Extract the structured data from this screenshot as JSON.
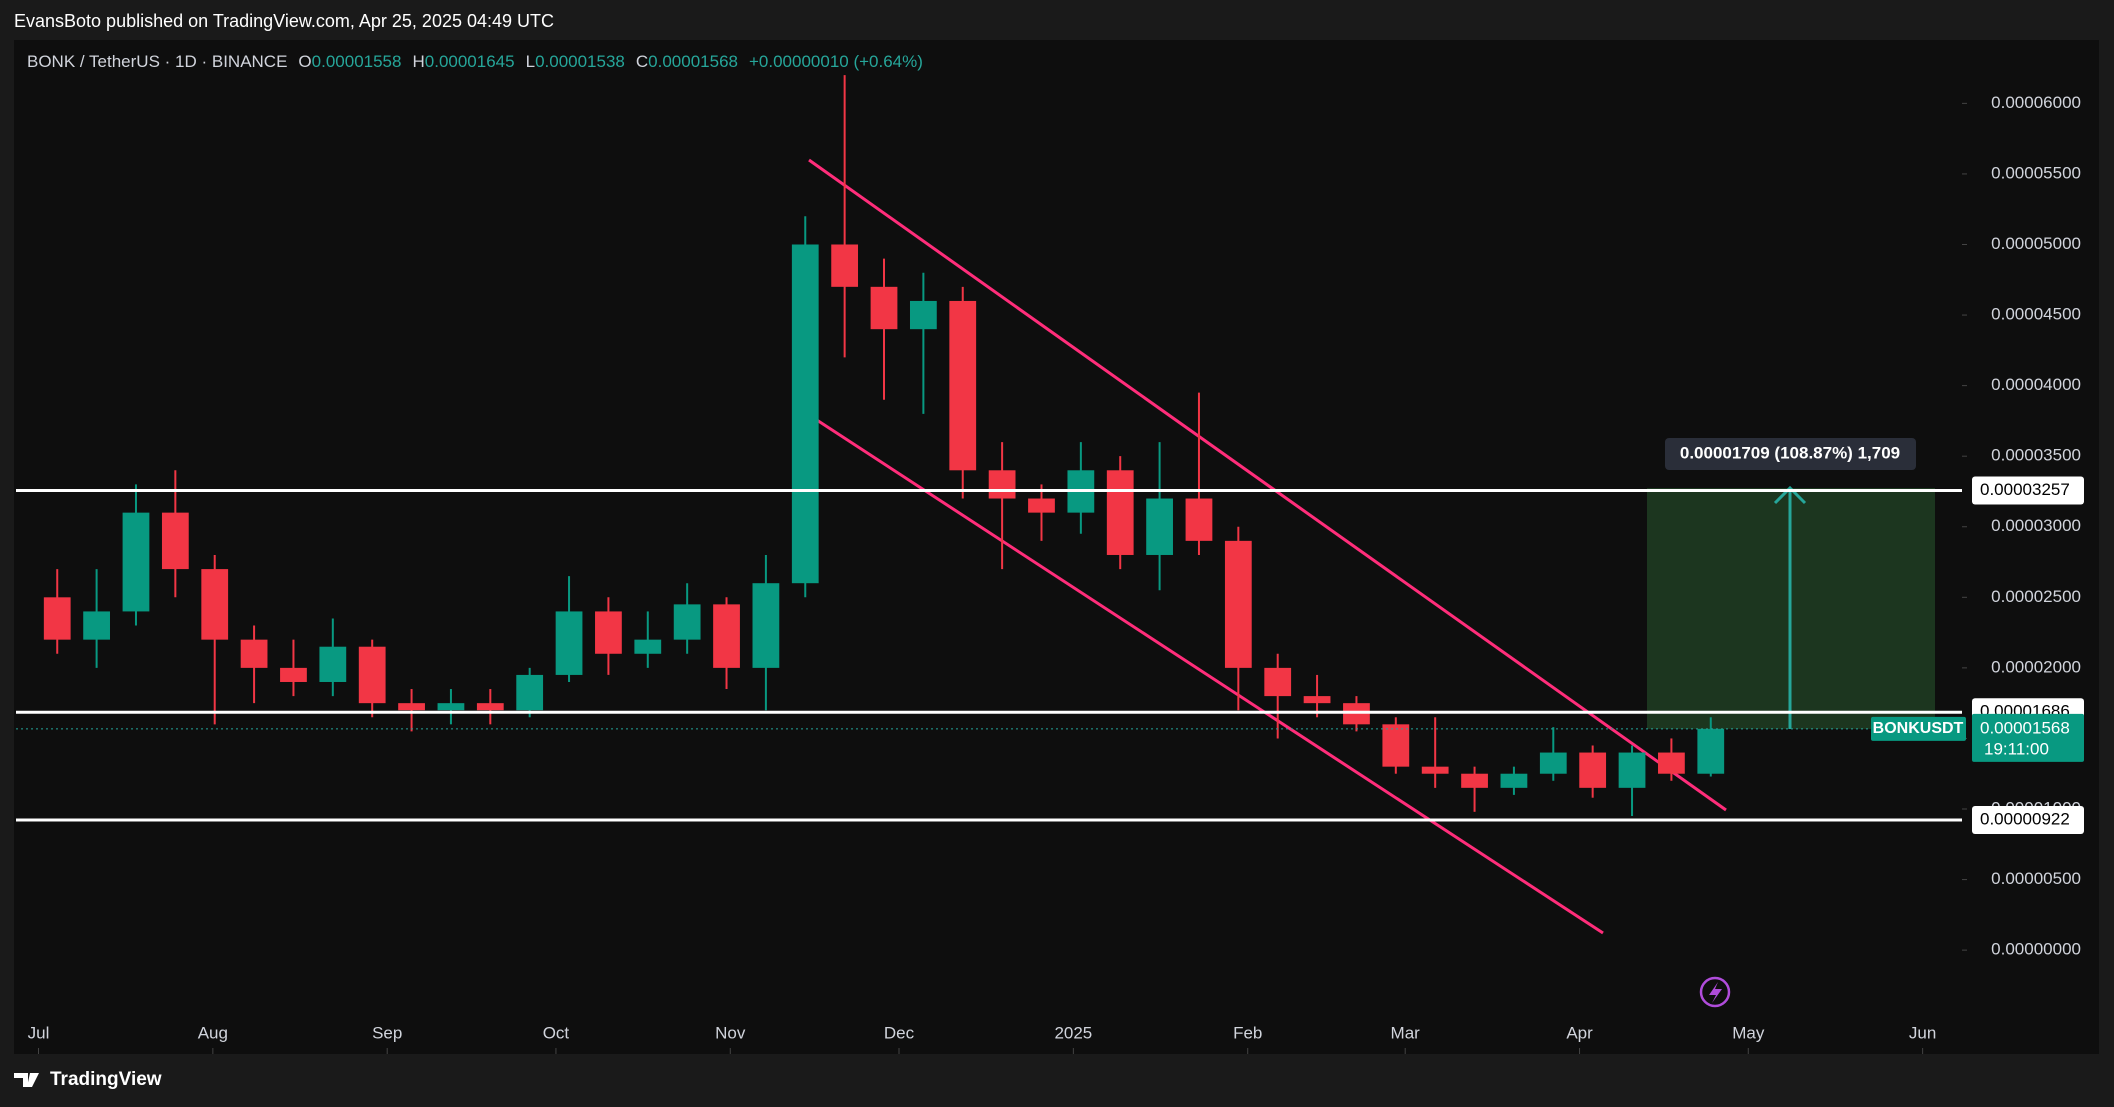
{
  "header": {
    "publisher": "EvansBoto published on TradingView.com, Apr 25, 2025 04:49 UTC",
    "brand": "TradingView"
  },
  "chart_data": {
    "type": "candlestick",
    "legend": {
      "symbol": "BONK / TetherUS · 1D · BINANCE",
      "open_key": "O",
      "open": 1.558e-05,
      "high_key": "H",
      "high": 1.645e-05,
      "low_key": "L",
      "low": 1.538e-05,
      "close_key": "C",
      "close": 1.568e-05,
      "change": "+0.00000010 (+0.64%)"
    },
    "x": [
      "2024-07-01",
      "2024-07-08",
      "2024-07-15",
      "2024-07-22",
      "2024-07-29",
      "2024-08-05",
      "2024-08-12",
      "2024-08-19",
      "2024-08-26",
      "2024-09-02",
      "2024-09-09",
      "2024-09-16",
      "2024-09-23",
      "2024-09-30",
      "2024-10-07",
      "2024-10-14",
      "2024-10-21",
      "2024-10-28",
      "2024-11-04",
      "2024-11-11",
      "2024-11-18",
      "2024-11-25",
      "2024-12-02",
      "2024-12-09",
      "2024-12-16",
      "2024-12-23",
      "2024-12-30",
      "2025-01-06",
      "2025-01-13",
      "2025-01-20",
      "2025-01-27",
      "2025-02-03",
      "2025-02-10",
      "2025-02-17",
      "2025-02-24",
      "2025-03-03",
      "2025-03-10",
      "2025-03-17",
      "2025-03-24",
      "2025-03-31",
      "2025-04-07",
      "2025-04-14",
      "2025-04-21"
    ],
    "open": [
      2.5e-05,
      2.2e-05,
      2.4e-05,
      3.1e-05,
      2.7e-05,
      2.2e-05,
      2e-05,
      1.9e-05,
      2.15e-05,
      1.75e-05,
      1.7e-05,
      1.75e-05,
      1.7e-05,
      1.95e-05,
      2.4e-05,
      2.1e-05,
      2.2e-05,
      2.45e-05,
      2e-05,
      2.6e-05,
      5e-05,
      4.7e-05,
      4.4e-05,
      4.6e-05,
      3.4e-05,
      3.2e-05,
      3.1e-05,
      3.4e-05,
      2.8e-05,
      3.2e-05,
      2.9e-05,
      2e-05,
      1.8e-05,
      1.75e-05,
      1.6e-05,
      1.3e-05,
      1.25e-05,
      1.15e-05,
      1.25e-05,
      1.4e-05,
      1.15e-05,
      1.4e-05,
      1.25e-05
    ],
    "high": [
      2.7e-05,
      2.7e-05,
      3.3e-05,
      3.4e-05,
      2.8e-05,
      2.3e-05,
      2.2e-05,
      2.35e-05,
      2.2e-05,
      1.85e-05,
      1.85e-05,
      1.85e-05,
      2e-05,
      2.65e-05,
      2.5e-05,
      2.4e-05,
      2.6e-05,
      2.5e-05,
      2.8e-05,
      5.2e-05,
      6.2e-05,
      4.9e-05,
      4.8e-05,
      4.7e-05,
      3.6e-05,
      3.3e-05,
      3.6e-05,
      3.5e-05,
      3.6e-05,
      3.95e-05,
      3e-05,
      2.1e-05,
      1.95e-05,
      1.8e-05,
      1.65e-05,
      1.65e-05,
      1.3e-05,
      1.3e-05,
      1.58e-05,
      1.45e-05,
      1.45e-05,
      1.5e-05,
      1.65e-05
    ],
    "low": [
      2.1e-05,
      2e-05,
      2.3e-05,
      2.5e-05,
      1.6e-05,
      1.75e-05,
      1.8e-05,
      1.8e-05,
      1.65e-05,
      1.55e-05,
      1.6e-05,
      1.6e-05,
      1.65e-05,
      1.9e-05,
      1.95e-05,
      2e-05,
      2.1e-05,
      1.85e-05,
      1.7e-05,
      2.5e-05,
      4.2e-05,
      3.9e-05,
      3.8e-05,
      3.2e-05,
      2.7e-05,
      2.9e-05,
      2.95e-05,
      2.7e-05,
      2.55e-05,
      2.8e-05,
      1.7e-05,
      1.5e-05,
      1.65e-05,
      1.55e-05,
      1.25e-05,
      1.15e-05,
      9.8e-06,
      1.1e-05,
      1.2e-05,
      1.08e-05,
      9.5e-06,
      1.2e-05,
      1.23e-05
    ],
    "close": [
      2.2e-05,
      2.4e-05,
      3.1e-05,
      2.7e-05,
      2.2e-05,
      2e-05,
      1.9e-05,
      2.15e-05,
      1.75e-05,
      1.7e-05,
      1.75e-05,
      1.7e-05,
      1.95e-05,
      2.4e-05,
      2.1e-05,
      2.2e-05,
      2.45e-05,
      2e-05,
      2.6e-05,
      5e-05,
      4.7e-05,
      4.4e-05,
      4.6e-05,
      3.4e-05,
      3.2e-05,
      3.1e-05,
      3.4e-05,
      2.8e-05,
      3.2e-05,
      2.9e-05,
      2e-05,
      1.8e-05,
      1.75e-05,
      1.6e-05,
      1.3e-05,
      1.25e-05,
      1.15e-05,
      1.25e-05,
      1.4e-05,
      1.15e-05,
      1.4e-05,
      1.25e-05,
      1.568e-05
    ],
    "up_color": "#089981",
    "down_color": "#f23645",
    "xlim": [
      "2024-06-27",
      "2025-06-08"
    ],
    "xticks": [
      {
        "value": "2024-07-01",
        "label": "Jul"
      },
      {
        "value": "2024-08-01",
        "label": "Aug"
      },
      {
        "value": "2024-09-01",
        "label": "Sep"
      },
      {
        "value": "2024-10-01",
        "label": "Oct"
      },
      {
        "value": "2024-11-01",
        "label": "Nov"
      },
      {
        "value": "2024-12-01",
        "label": "Dec"
      },
      {
        "value": "2025-01-01",
        "label": "2025"
      },
      {
        "value": "2025-02-01",
        "label": "Feb"
      },
      {
        "value": "2025-03-01",
        "label": "Mar"
      },
      {
        "value": "2025-04-01",
        "label": "Apr"
      },
      {
        "value": "2025-05-01",
        "label": "May"
      },
      {
        "value": "2025-06-01",
        "label": "Jun"
      }
    ],
    "ylim": [
      -7.36e-06,
      6.449e-05
    ],
    "yticks": [
      {
        "value": 0,
        "label": "0.00000000"
      },
      {
        "value": 5e-06,
        "label": "0.00000500"
      },
      {
        "value": 1e-05,
        "label": "0.00001000"
      },
      {
        "value": 1.5e-05,
        "label": "0.00001500"
      },
      {
        "value": 2e-05,
        "label": "0.00002000"
      },
      {
        "value": 2.5e-05,
        "label": "0.00002500"
      },
      {
        "value": 3e-05,
        "label": "0.00003000"
      },
      {
        "value": 3.5e-05,
        "label": "0.00003500"
      },
      {
        "value": 4e-05,
        "label": "0.00004000"
      },
      {
        "value": 4.5e-05,
        "label": "0.00004500"
      },
      {
        "value": 5e-05,
        "label": "0.00005000"
      },
      {
        "value": 5.5e-05,
        "label": "0.00005500"
      },
      {
        "value": 6e-05,
        "label": "0.00006000"
      }
    ],
    "levels": [
      3.257e-05,
      1.686e-05,
      9.22e-06
    ],
    "last_price": 1.568e-05,
    "last_name": "BONKUSDT",
    "countdown": "19:11:00",
    "measure_label": "0.00001709 (108.87%) 1,709"
  }
}
